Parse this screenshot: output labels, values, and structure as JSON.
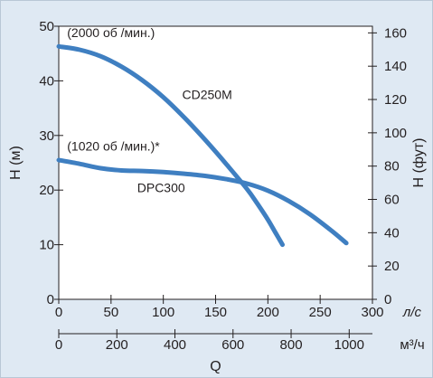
{
  "chart_data": {
    "type": "line",
    "xlabel": "Q",
    "ylabel_left": "H (м)",
    "ylabel_right": "H (фут)",
    "unit_primary_x": "л/с",
    "unit_secondary_x": "м³/ч",
    "x_primary": {
      "range": [
        0,
        300
      ],
      "ticks": [
        0,
        50,
        100,
        150,
        200,
        250,
        300
      ]
    },
    "x_secondary": {
      "range": [
        0,
        1080
      ],
      "ticks": [
        0,
        200,
        400,
        600,
        800,
        1000
      ]
    },
    "y_left": {
      "range": [
        0,
        50
      ],
      "ticks": [
        0,
        10,
        20,
        30,
        40,
        50
      ]
    },
    "y_right": {
      "range": [
        0,
        164
      ],
      "ticks": [
        0,
        20,
        40,
        60,
        80,
        100,
        120,
        140,
        160
      ]
    },
    "grid": false,
    "series": [
      {
        "name": "CD250M",
        "color": "#3f7fc1",
        "x": [
          0,
          20,
          40,
          60,
          80,
          100,
          120,
          140,
          160,
          180,
          190,
          200,
          207,
          214
        ],
        "y": [
          46.3,
          45.7,
          44.5,
          42.6,
          40.1,
          37.0,
          33.3,
          29.2,
          24.8,
          20.2,
          17.5,
          14.6,
          12.3,
          10.0
        ]
      },
      {
        "name": "DPC300",
        "color": "#3f7fc1",
        "x": [
          0,
          20,
          40,
          60,
          80,
          100,
          120,
          140,
          160,
          180,
          200,
          220,
          240,
          260,
          275
        ],
        "y": [
          25.5,
          24.8,
          24.0,
          23.6,
          23.5,
          23.3,
          23.0,
          22.6,
          22.0,
          21.2,
          19.9,
          18.0,
          15.6,
          12.7,
          10.3
        ]
      }
    ],
    "annotations": [
      {
        "id": "speed_a",
        "text": "(2000 об /мин.)",
        "x": 8,
        "y": 48
      },
      {
        "id": "speed_b",
        "text": "(1020 об /мин.)*",
        "x": 8,
        "y": 27.2
      },
      {
        "id": "label_cd",
        "text": "CD250M",
        "x": 118,
        "y": 36.7
      },
      {
        "id": "label_dpc",
        "text": "DPC300",
        "x": 75,
        "y": 19.6
      }
    ]
  }
}
